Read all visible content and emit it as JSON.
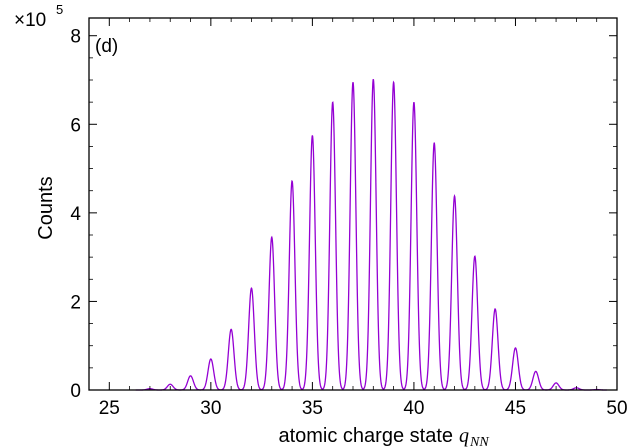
{
  "chart_data": {
    "type": "line",
    "panel_label": "(d)",
    "xlabel": "atomic charge state",
    "xlabel_var": "q",
    "xlabel_sub": "NN",
    "ylabel": "Counts",
    "y_multiplier": {
      "base": "×10",
      "exponent": "5"
    },
    "xlim": [
      24,
      50
    ],
    "ylim": [
      0,
      8.4
    ],
    "x_ticks": [
      25,
      30,
      35,
      40,
      45,
      50
    ],
    "y_ticks": [
      0,
      2,
      4,
      6,
      8
    ],
    "grid": false,
    "series": [
      {
        "color": "#9400d3",
        "peaks_x": [
          27,
          28,
          29,
          30,
          31,
          32,
          33,
          34,
          35,
          36,
          37,
          38,
          39,
          40,
          41,
          42,
          43,
          44,
          45,
          46,
          47,
          48,
          49
        ],
        "peaks_y": [
          0.03,
          0.13,
          0.32,
          0.7,
          1.37,
          2.3,
          3.45,
          4.72,
          5.75,
          6.5,
          6.95,
          7.02,
          6.95,
          6.5,
          5.58,
          4.38,
          3.02,
          1.83,
          0.95,
          0.42,
          0.16,
          0.05,
          0.01
        ]
      }
    ]
  }
}
